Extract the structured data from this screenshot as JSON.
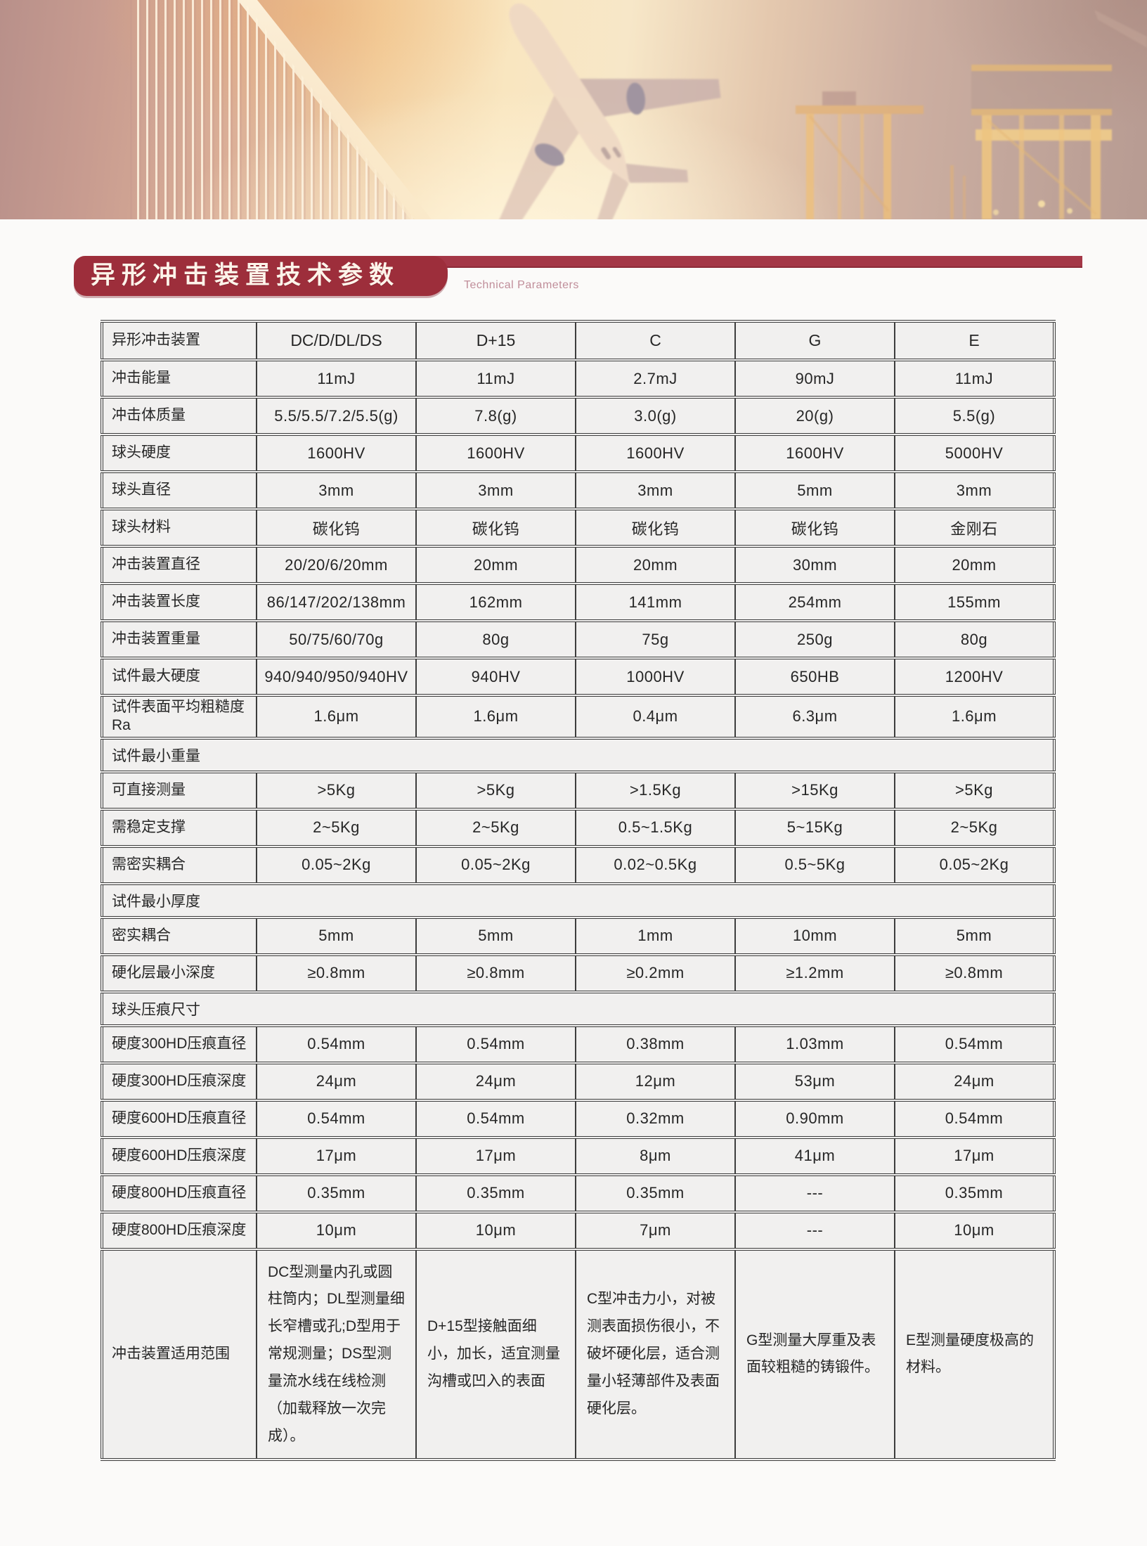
{
  "banner": {
    "title": "异形冲击装置技术参数",
    "subtitle": "Technical Parameters"
  },
  "hero": {
    "illustrations": [
      "airplane",
      "port-cranes",
      "striped-wall"
    ]
  },
  "colors": {
    "accent": "#9d2e3b",
    "bar": "#a43747",
    "subtitle": "#c08e9a",
    "border": "#3d3d3d",
    "cellbg": "#f1f0ef",
    "pagebg": "#fbfaf9",
    "ink": "#262626"
  },
  "table": {
    "corner_label": "异形冲击装置",
    "columns": [
      "DC/D/DL/DS",
      "D+15",
      "C",
      "G",
      "E"
    ],
    "rows": [
      {
        "type": "data",
        "label": "冲击能量",
        "values": [
          "11mJ",
          "11mJ",
          "2.7mJ",
          "90mJ",
          "11mJ"
        ]
      },
      {
        "type": "data",
        "label": "冲击体质量",
        "values": [
          "5.5/5.5/7.2/5.5(g)",
          "7.8(g)",
          "3.0(g)",
          "20(g)",
          "5.5(g)"
        ]
      },
      {
        "type": "data",
        "label": "球头硬度",
        "values": [
          "1600HV",
          "1600HV",
          "1600HV",
          "1600HV",
          "5000HV"
        ]
      },
      {
        "type": "data",
        "label": "球头直径",
        "values": [
          "3mm",
          "3mm",
          "3mm",
          "5mm",
          "3mm"
        ]
      },
      {
        "type": "data",
        "label": "球头材料",
        "values": [
          "碳化钨",
          "碳化钨",
          "碳化钨",
          "碳化钨",
          "金刚石"
        ]
      },
      {
        "type": "data",
        "label": "冲击装置直径",
        "values": [
          "20/20/6/20mm",
          "20mm",
          "20mm",
          "30mm",
          "20mm"
        ]
      },
      {
        "type": "data",
        "label": "冲击装置长度",
        "values": [
          "86/147/202/138mm",
          "162mm",
          "141mm",
          "254mm",
          "155mm"
        ]
      },
      {
        "type": "data",
        "label": "冲击装置重量",
        "values": [
          "50/75/60/70g",
          "80g",
          "75g",
          "250g",
          "80g"
        ]
      },
      {
        "type": "data",
        "label": "试件最大硬度",
        "values": [
          "940/940/950/940HV",
          "940HV",
          "1000HV",
          "650HB",
          "1200HV"
        ]
      },
      {
        "type": "data",
        "tall": true,
        "label": "试件表面平均粗糙度Ra",
        "values": [
          "1.6μm",
          "1.6μm",
          "0.4μm",
          "6.3μm",
          "1.6μm"
        ]
      },
      {
        "type": "section",
        "label": "试件最小重量"
      },
      {
        "type": "data",
        "label": "可直接测量",
        "values": [
          ">5Kg",
          ">5Kg",
          ">1.5Kg",
          ">15Kg",
          ">5Kg"
        ]
      },
      {
        "type": "data",
        "label": "需稳定支撑",
        "values": [
          "2~5Kg",
          "2~5Kg",
          "0.5~1.5Kg",
          "5~15Kg",
          "2~5Kg"
        ]
      },
      {
        "type": "data",
        "label": "需密实耦合",
        "values": [
          "0.05~2Kg",
          "0.05~2Kg",
          "0.02~0.5Kg",
          "0.5~5Kg",
          "0.05~2Kg"
        ]
      },
      {
        "type": "section",
        "label": "试件最小厚度"
      },
      {
        "type": "data",
        "label": "密实耦合",
        "values": [
          "5mm",
          "5mm",
          "1mm",
          "10mm",
          "5mm"
        ]
      },
      {
        "type": "data",
        "label": "硬化层最小深度",
        "values": [
          "≥0.8mm",
          "≥0.8mm",
          "≥0.2mm",
          "≥1.2mm",
          "≥0.8mm"
        ]
      },
      {
        "type": "section",
        "label": "球头压痕尺寸"
      },
      {
        "type": "data",
        "label": "硬度300HD压痕直径",
        "values": [
          "0.54mm",
          "0.54mm",
          "0.38mm",
          "1.03mm",
          "0.54mm"
        ]
      },
      {
        "type": "data",
        "label": "硬度300HD压痕深度",
        "values": [
          "24μm",
          "24μm",
          "12μm",
          "53μm",
          "24μm"
        ]
      },
      {
        "type": "data",
        "label": "硬度600HD压痕直径",
        "values": [
          "0.54mm",
          "0.54mm",
          "0.32mm",
          "0.90mm",
          "0.54mm"
        ]
      },
      {
        "type": "data",
        "label": "硬度600HD压痕深度",
        "values": [
          "17μm",
          "17μm",
          "8μm",
          "41μm",
          "17μm"
        ]
      },
      {
        "type": "data",
        "label": "硬度800HD压痕直径",
        "values": [
          "0.35mm",
          "0.35mm",
          "0.35mm",
          "---",
          "0.35mm"
        ]
      },
      {
        "type": "data",
        "label": "硬度800HD压痕深度",
        "values": [
          "10μm",
          "10μm",
          "7μm",
          "---",
          "10μm"
        ]
      },
      {
        "type": "desc",
        "label": "冲击装置适用范围",
        "values": [
          "DC型测量内孔或圆柱筒内；DL型测量细长窄槽或孔;D型用于常规测量；DS型测量流水线在线检测（加载释放一次完成）。",
          "D+15型接触面细小，加长，适宜测量沟槽或凹入的表面",
          "C型冲击力小，对被测表面损伤很小，不破坏硬化层，适合测量小轻薄部件及表面硬化层。",
          "G型测量大厚重及表面较粗糙的铸锻件。",
          "E型测量硬度极高的材料。"
        ]
      }
    ]
  }
}
